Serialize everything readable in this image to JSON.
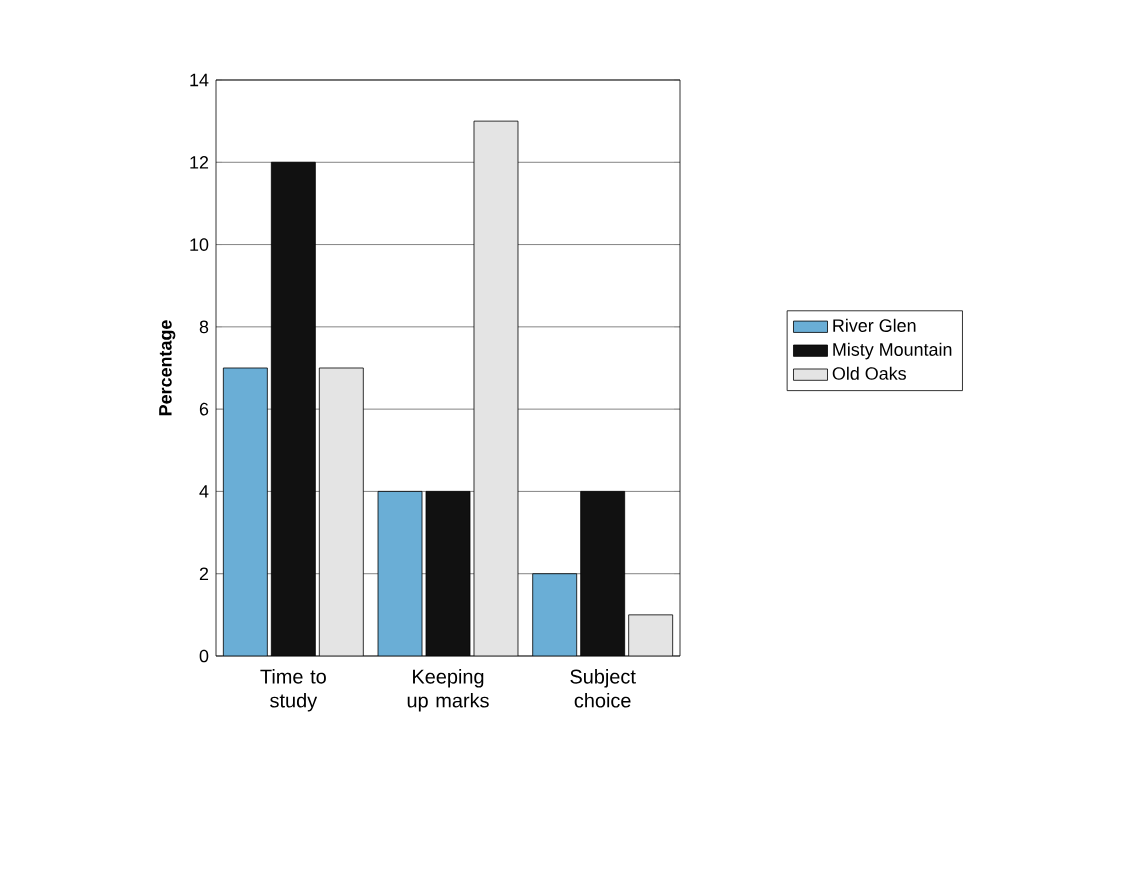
{
  "chart_data": {
    "type": "bar",
    "ylabel": "Percentage",
    "categories": [
      "Time to study",
      "Keeping up marks",
      "Subject choice"
    ],
    "series": [
      {
        "name": "River Glen",
        "color": "#6aaed6",
        "values": [
          7,
          4,
          2
        ]
      },
      {
        "name": "Misty Mountain",
        "color": "#111111",
        "values": [
          12,
          4,
          4
        ]
      },
      {
        "name": "Old Oaks",
        "color": "#e4e4e4",
        "values": [
          7,
          13,
          1
        ]
      }
    ],
    "ylim": [
      0,
      14
    ],
    "yticks": [
      0,
      2,
      4,
      6,
      8,
      10,
      12,
      14
    ],
    "grid": "y",
    "legend": "right"
  }
}
